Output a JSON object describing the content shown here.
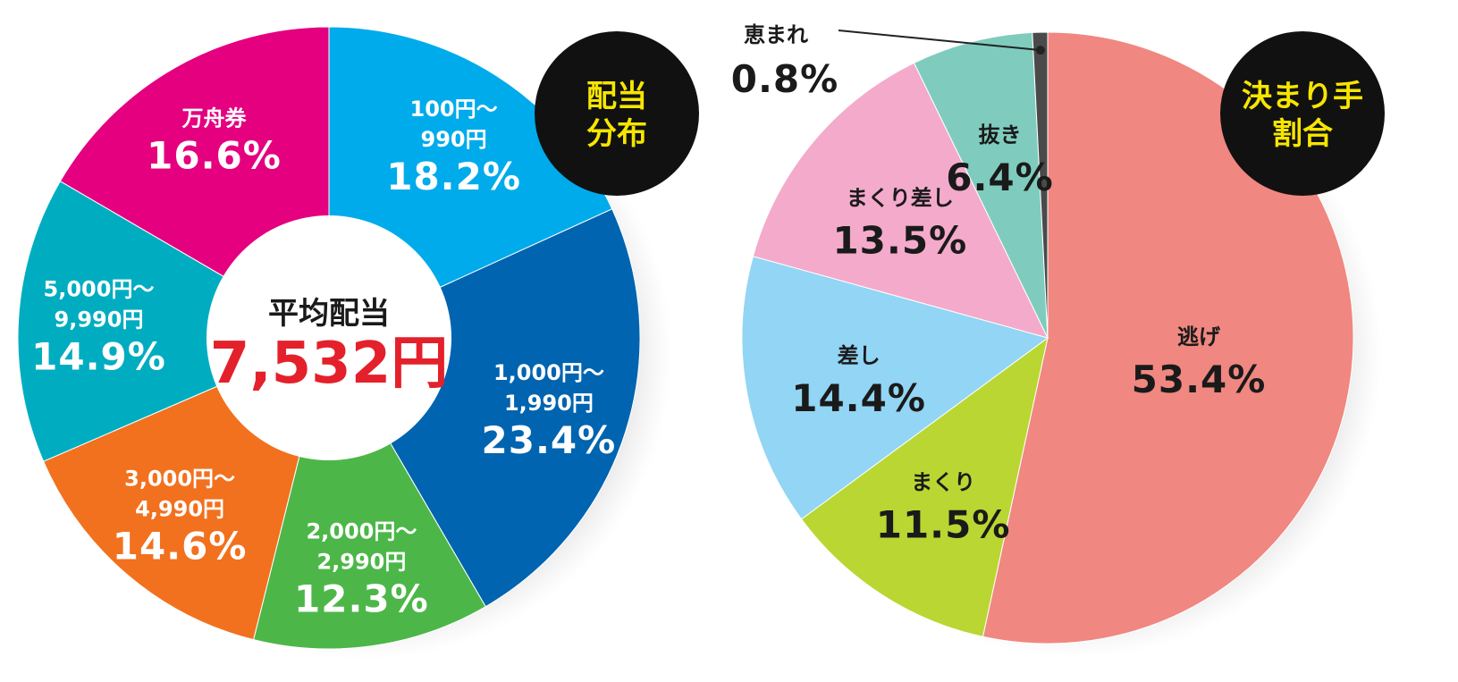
{
  "charts": [
    {
      "badge": [
        "配当",
        "分布"
      ],
      "center": {
        "label": "平均配当",
        "value": "7,532円"
      },
      "slices": [
        {
          "lines": [
            "100円〜",
            "990円"
          ],
          "pct": "18.2%",
          "color": "#00abeb",
          "text": "#ffffff"
        },
        {
          "lines": [
            "1,000円〜",
            "1,990円"
          ],
          "pct": "23.4%",
          "color": "#0064b0",
          "text": "#ffffff"
        },
        {
          "lines": [
            "2,000円〜",
            "2,990円"
          ],
          "pct": "12.3%",
          "color": "#4cb748",
          "text": "#ffffff"
        },
        {
          "lines": [
            "3,000円〜",
            "4,990円"
          ],
          "pct": "14.6%",
          "color": "#f2711e",
          "text": "#ffffff"
        },
        {
          "lines": [
            "5,000円〜",
            "9,990円"
          ],
          "pct": "14.9%",
          "color": "#00adc0",
          "text": "#ffffff"
        },
        {
          "lines": [
            "万舟券"
          ],
          "pct": "16.6%",
          "color": "#e4007f",
          "text": "#ffffff"
        }
      ]
    },
    {
      "badge": [
        "決まり手",
        "割合"
      ],
      "slices": [
        {
          "lines": [
            "逃げ"
          ],
          "pct": "53.4%",
          "color": "#f08781",
          "text": "#1a1a1a"
        },
        {
          "lines": [
            "まくり"
          ],
          "pct": "11.5%",
          "color": "#bad632",
          "text": "#1a1a1a"
        },
        {
          "lines": [
            "差し"
          ],
          "pct": "14.4%",
          "color": "#92d5f4",
          "text": "#1a1a1a"
        },
        {
          "lines": [
            "まくり差し"
          ],
          "pct": "13.5%",
          "color": "#f4aacb",
          "text": "#1a1a1a"
        },
        {
          "lines": [
            "抜き"
          ],
          "pct": "6.4%",
          "color": "#7fccbe",
          "text": "#1a1a1a"
        },
        {
          "lines": [
            "恵まれ"
          ],
          "pct": "0.8%",
          "color": "#4a4a4a",
          "text": "#1a1a1a",
          "callout": true
        }
      ]
    }
  ],
  "chart_data": [
    {
      "type": "pie",
      "title": "",
      "categories": [
        "100円〜990円",
        "1,000円〜1,990円",
        "2,000円〜2,990円",
        "3,000円〜4,990円",
        "5,000円〜9,990円",
        "万舟券"
      ],
      "values": [
        18.2,
        23.4,
        12.3,
        14.6,
        14.9,
        16.6
      ],
      "donut": true
    },
    {
      "type": "pie",
      "title": "",
      "categories": [
        "逃げ",
        "まくり",
        "差し",
        "まくり差し",
        "抜き",
        "恵まれ"
      ],
      "values": [
        53.4,
        11.5,
        14.4,
        13.5,
        6.4,
        0.8
      ]
    }
  ]
}
